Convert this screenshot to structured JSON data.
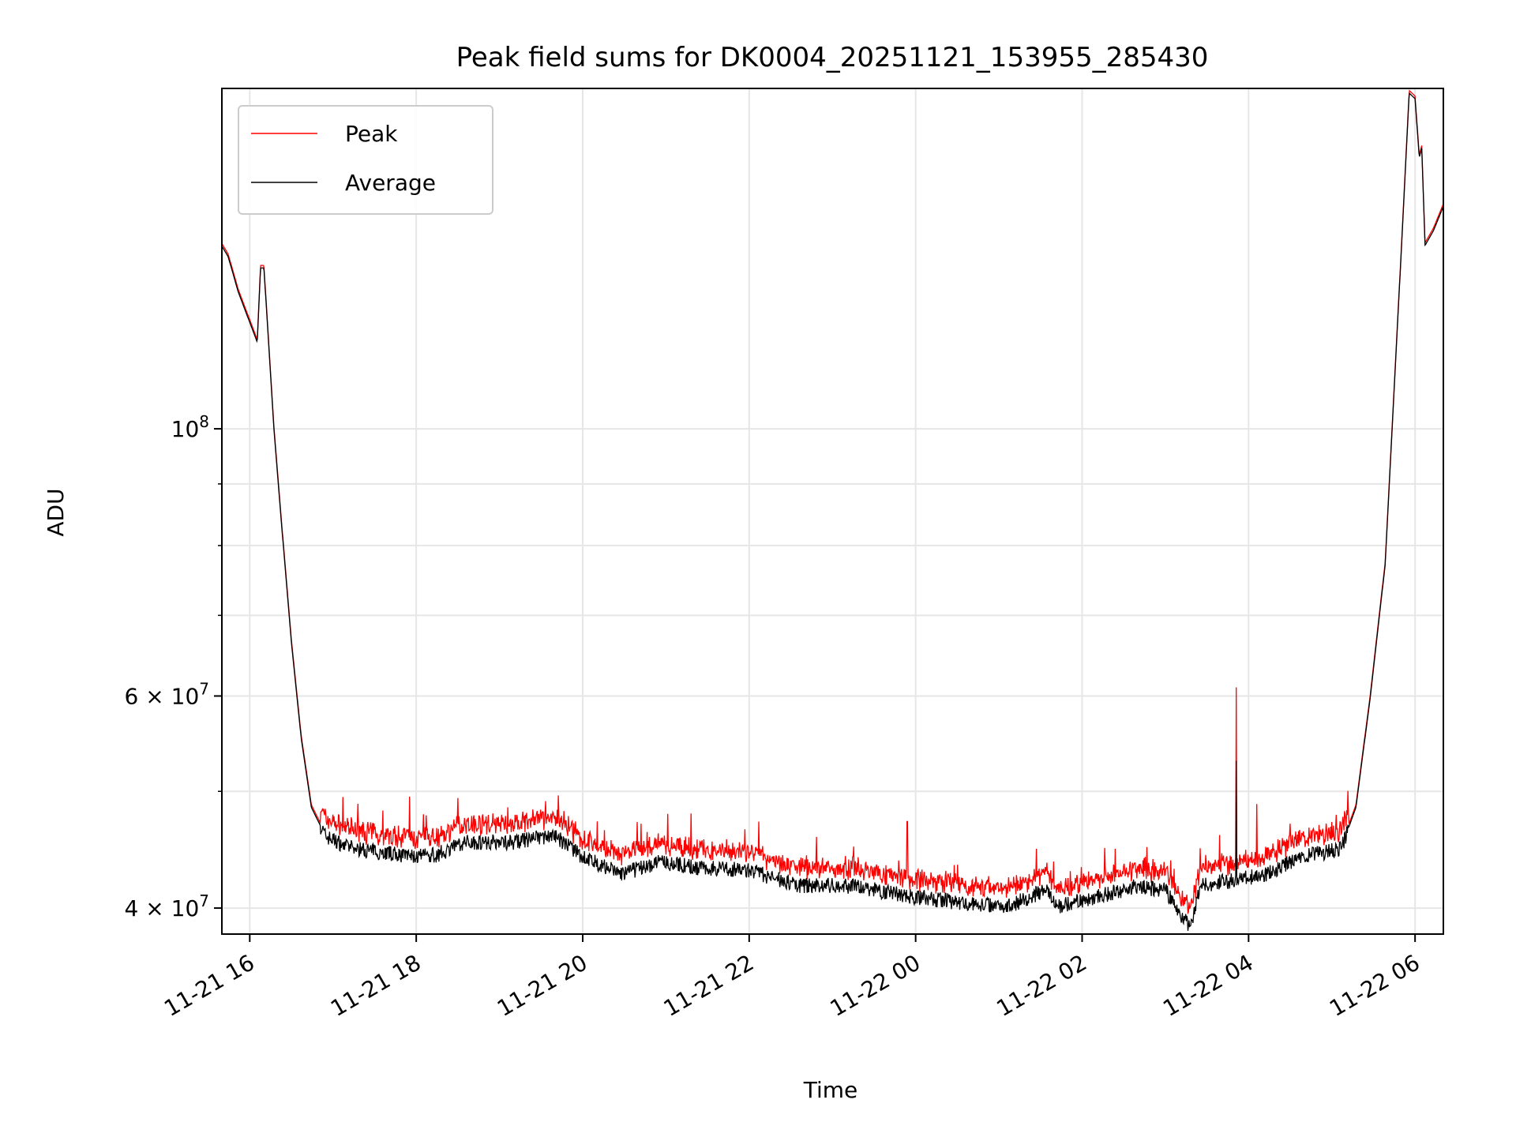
{
  "chart_data": {
    "type": "line",
    "title": "Peak field sums for DK0004_20251121_153955_285430",
    "xlabel": "Time",
    "ylabel": "ADU",
    "x_units": "hours since 2025-11-21 00:00",
    "xlim": [
      15.665,
      30.34
    ],
    "ylim": [
      38060000,
      191700000
    ],
    "yscale": "log",
    "grid": true,
    "x_ticks": [
      {
        "value": 16,
        "label": "11-21 16"
      },
      {
        "value": 18,
        "label": "11-21 18"
      },
      {
        "value": 20,
        "label": "11-21 20"
      },
      {
        "value": 22,
        "label": "11-21 22"
      },
      {
        "value": 24,
        "label": "11-22 00"
      },
      {
        "value": 26,
        "label": "11-22 02"
      },
      {
        "value": 28,
        "label": "11-22 04"
      },
      {
        "value": 30,
        "label": "11-22 06"
      }
    ],
    "y_ticks": [
      {
        "value": 100000000,
        "base": "10",
        "mantissa": "",
        "exp": "8"
      },
      {
        "value": 60000000,
        "base": "10",
        "mantissa": "6 × ",
        "exp": "7"
      },
      {
        "value": 40000000,
        "base": "10",
        "mantissa": "4 × ",
        "exp": "7"
      }
    ],
    "y_minor_ticks": [
      50000000,
      70000000,
      80000000,
      90000000
    ],
    "legend": {
      "position": "upper-left",
      "entries": [
        {
          "label": "Peak",
          "color": "#ff0000"
        },
        {
          "label": "Average",
          "color": "#000000"
        }
      ]
    },
    "series": [
      {
        "name": "Average",
        "color": "#000000",
        "x": [
          15.66,
          15.74,
          15.86,
          16.09,
          16.13,
          16.17,
          16.29,
          16.39,
          16.5,
          16.62,
          16.74,
          16.91,
          17.2,
          18.0,
          18.25,
          18.6,
          19.2,
          19.65,
          20.0,
          20.47,
          20.94,
          21.4,
          22.0,
          22.57,
          23.27,
          23.97,
          24.67,
          25.14,
          25.55,
          25.73,
          26.08,
          26.66,
          27.0,
          27.18,
          27.3,
          27.42,
          27.83,
          28.18,
          28.64,
          29.11,
          29.29,
          29.46,
          29.64,
          29.81,
          29.93,
          30.0,
          30.05,
          30.08,
          30.12,
          30.22,
          30.34
        ],
        "values": [
          142000000,
          139000000,
          130000000,
          118000000,
          136000000,
          136000000,
          100000000,
          82000000,
          66500000,
          55200000,
          48500000,
          45900000,
          44900000,
          44100000,
          44300000,
          45400000,
          45400000,
          46000000,
          44100000,
          42700000,
          43700000,
          43200000,
          43000000,
          41800000,
          41700000,
          40900000,
          40300000,
          40200000,
          41400000,
          40200000,
          40700000,
          41700000,
          41400000,
          39600000,
          38500000,
          41800000,
          42200000,
          42600000,
          44100000,
          44800000,
          48500000,
          59700000,
          77000000,
          130000000,
          190000000,
          188000000,
          168000000,
          171000000,
          142000000,
          146000000,
          153000000
        ]
      },
      {
        "name": "Peak",
        "color": "#ff0000",
        "relative_offset": 0.025,
        "spikes": [
          {
            "x": 17.92,
            "value": 49500000
          },
          {
            "x": 17.6,
            "value": 48200000
          },
          {
            "x": 19.1,
            "value": 48500000
          },
          {
            "x": 20.7,
            "value": 47000000
          },
          {
            "x": 21.95,
            "value": 46500000
          },
          {
            "x": 23.9,
            "value": 47200000
          },
          {
            "x": 25.45,
            "value": 44800000
          },
          {
            "x": 26.4,
            "value": 44800000
          },
          {
            "x": 27.85,
            "value": 61000000
          },
          {
            "x": 28.1,
            "value": 48800000
          },
          {
            "x": 27.65,
            "value": 46000000
          },
          {
            "x": 28.5,
            "value": 47000000
          }
        ]
      }
    ]
  }
}
